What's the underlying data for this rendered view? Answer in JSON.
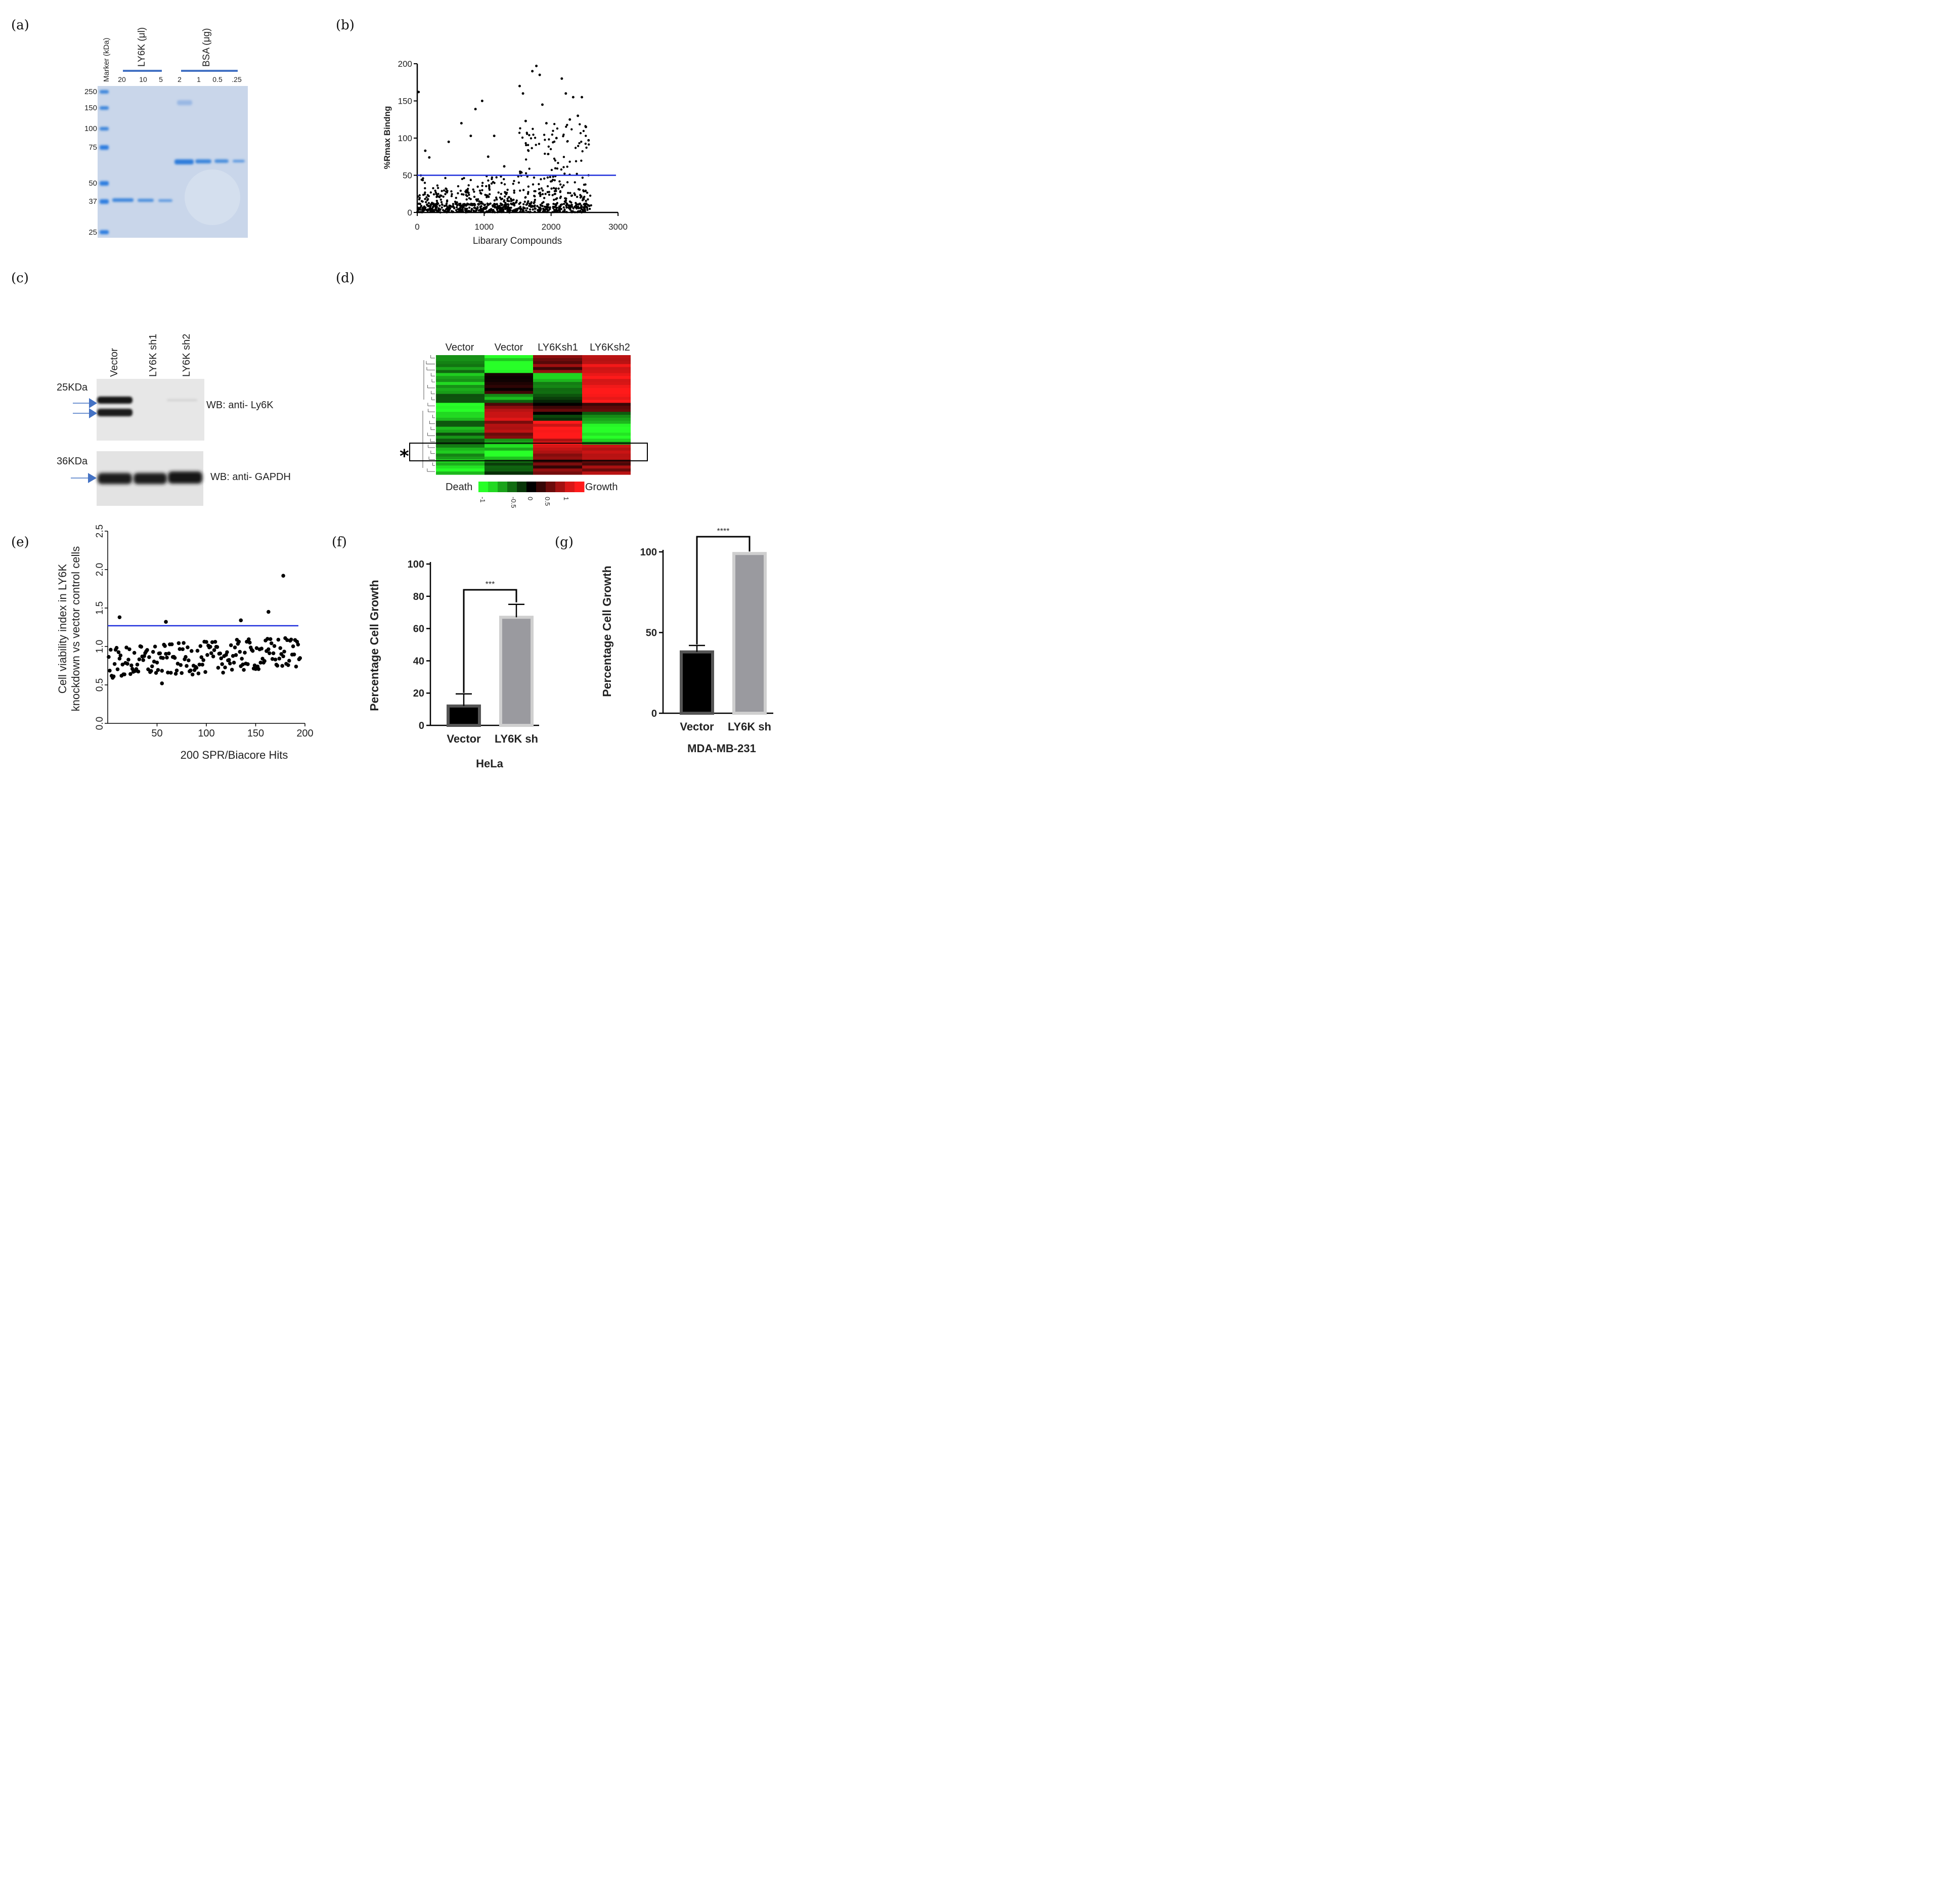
{
  "panels": {
    "a": {
      "label": "(a)",
      "marker_header": "Marker (kDa)",
      "ly6k_header": "LY6K (μl)",
      "bsa_header": "BSA (μg)",
      "ly6k_lanes": [
        "20",
        "10",
        "5"
      ],
      "bsa_lanes": [
        "2",
        "1",
        "0.5",
        ".25"
      ],
      "marker_sizes": [
        "250",
        "150",
        "100",
        "75",
        "50",
        "37",
        "25"
      ]
    },
    "b": {
      "label": "(b)",
      "ylabel": "%Rmax Bindng",
      "xlabel": "Libarary Compounds",
      "yticks": [
        "0",
        "50",
        "100",
        "150",
        "200"
      ],
      "xticks": [
        "0",
        "1000",
        "2000",
        "3000"
      ]
    },
    "c": {
      "label": "(c)",
      "lanes": [
        "Vector",
        "LY6K sh1",
        "LY6K sh2"
      ],
      "blot1_size": "25KDa",
      "blot1_label": "WB: anti- Ly6K",
      "blot2_size": "36KDa",
      "blot2_label": "WB: anti- GAPDH"
    },
    "d": {
      "label": "(d)",
      "columns": [
        "Vector",
        "Vector",
        "LY6Ksh1",
        "LY6Ksh2"
      ],
      "asterisk": "*",
      "legend_left": "Death",
      "legend_right": "Growth",
      "legend_ticks": [
        "-1",
        "-0.5",
        "0",
        "0.5",
        "1"
      ]
    },
    "e": {
      "label": "(e)",
      "ylabel_line1": "Cell viability index in LY6K",
      "ylabel_line2": "knockdown vs vector control cells",
      "xlabel": "200 SPR/Biacore Hits",
      "yticks": [
        "0.0",
        "0.5",
        "1.0",
        "1.5",
        "2.0",
        "2.5"
      ],
      "xticks": [
        "50",
        "100",
        "150",
        "200"
      ]
    },
    "f": {
      "label": "(f)",
      "ylabel": "Percentage Cell Growth",
      "title": "HeLa",
      "significance": "***",
      "yticks": [
        "0",
        "20",
        "40",
        "60",
        "80",
        "100"
      ]
    },
    "g": {
      "label": "(g)",
      "ylabel": "Percentage Cell Growth",
      "title": "MDA-MB-231",
      "significance": "****",
      "yticks": [
        "0",
        "50",
        "100"
      ]
    }
  },
  "colors": {
    "threshold_line": "#1f2fdc",
    "bar_vector": "#000000",
    "bar_sh": "#9a9a9f",
    "gel_bg": "#c9d6ea",
    "gel_band": "#3c86dc",
    "heat_green": "#22ff22",
    "heat_red": "#ff1a1a"
  },
  "chart_data": [
    {
      "type": "scatter",
      "panel": "b",
      "title": "",
      "xlabel": "Libarary Compounds",
      "ylabel": "%Rmax Bindng",
      "xlim": [
        0,
        3000
      ],
      "ylim": [
        0,
        200
      ],
      "threshold": 50,
      "n_points": 900,
      "highlighted_points": [
        {
          "x": 20,
          "y": 162
        },
        {
          "x": 120,
          "y": 83
        },
        {
          "x": 180,
          "y": 74
        },
        {
          "x": 470,
          "y": 95
        },
        {
          "x": 660,
          "y": 120
        },
        {
          "x": 800,
          "y": 103
        },
        {
          "x": 870,
          "y": 139
        },
        {
          "x": 970,
          "y": 150
        },
        {
          "x": 1060,
          "y": 75
        },
        {
          "x": 1150,
          "y": 103
        },
        {
          "x": 1300,
          "y": 62
        },
        {
          "x": 1530,
          "y": 170
        },
        {
          "x": 1580,
          "y": 160
        },
        {
          "x": 1620,
          "y": 123
        },
        {
          "x": 1720,
          "y": 190
        },
        {
          "x": 1780,
          "y": 197
        },
        {
          "x": 1830,
          "y": 185
        },
        {
          "x": 1870,
          "y": 145
        },
        {
          "x": 1930,
          "y": 120
        },
        {
          "x": 2080,
          "y": 100
        },
        {
          "x": 2160,
          "y": 180
        },
        {
          "x": 2220,
          "y": 160
        },
        {
          "x": 2280,
          "y": 125
        },
        {
          "x": 2330,
          "y": 155
        },
        {
          "x": 2400,
          "y": 130
        },
        {
          "x": 2460,
          "y": 155
        },
        {
          "x": 2520,
          "y": 115
        },
        {
          "x": 2560,
          "y": 97
        }
      ]
    },
    {
      "type": "scatter",
      "panel": "e",
      "title": "",
      "xlabel": "200 SPR/Biacore Hits",
      "ylabel": "Cell viability index in LY6K knockdown vs vector control cells",
      "xlim": [
        0,
        200
      ],
      "ylim": [
        0,
        2.5
      ],
      "threshold": 1.27,
      "n_points": 195,
      "highlighted_points": [
        {
          "x": 12,
          "y": 1.38
        },
        {
          "x": 59,
          "y": 1.32
        },
        {
          "x": 135,
          "y": 1.34
        },
        {
          "x": 163,
          "y": 1.45
        },
        {
          "x": 178,
          "y": 1.92
        },
        {
          "x": 55,
          "y": 0.52
        }
      ]
    },
    {
      "type": "bar",
      "panel": "f",
      "title": "HeLa",
      "categories": [
        "Vector",
        "LY6K sh"
      ],
      "values": [
        12,
        67
      ],
      "errors": [
        7.5,
        8
      ],
      "ylim": [
        0,
        100
      ],
      "ylabel": "Percentage Cell Growth",
      "xlabel": ""
    },
    {
      "type": "bar",
      "panel": "g",
      "title": "MDA-MB-231",
      "categories": [
        "Vector",
        "LY6K sh"
      ],
      "values": [
        38,
        99
      ],
      "errors": [
        4,
        0
      ],
      "ylim": [
        0,
        100
      ],
      "ylabel": "Percentage Cell Growth",
      "xlabel": ""
    },
    {
      "type": "heatmap",
      "panel": "d",
      "columns": [
        "Vector",
        "Vector",
        "LY6Ksh1",
        "LY6Ksh2"
      ],
      "value_range": [
        -1.25,
        1.25
      ],
      "rows": 40,
      "highlighted_rows": "cluster marked *"
    }
  ]
}
